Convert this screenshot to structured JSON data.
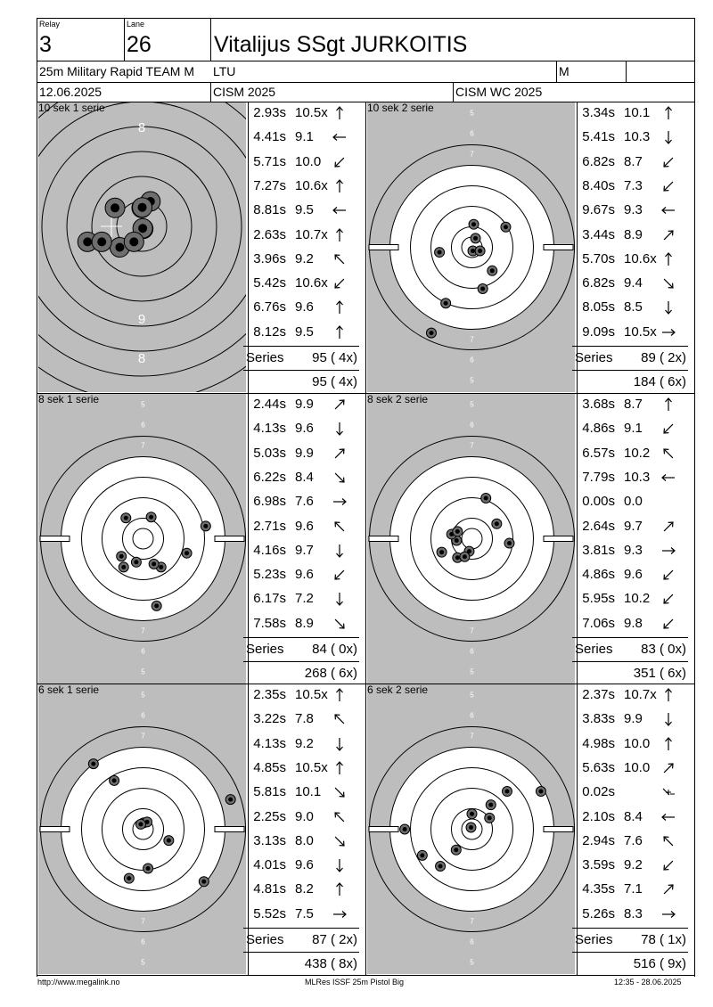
{
  "header": {
    "relay_label": "Relay",
    "relay": "3",
    "lane_label": "Lane",
    "lane": "26",
    "shooter": "Vitalijus SSgt JURKOITIS",
    "event": "25m Military Rapid TEAM M",
    "nation": "LTU",
    "gender": "M",
    "date": "12.06.2025",
    "competition": "CISM 2025",
    "championship": "CISM WC 2025"
  },
  "series_label": "Series",
  "panels": [
    {
      "title": "10 sek 1 serie",
      "zoom": true,
      "shots": [
        {
          "time": "2.93s",
          "score": "10.5x",
          "dir": "n"
        },
        {
          "time": "4.41s",
          "score": "9.1",
          "dir": "w"
        },
        {
          "time": "5.71s",
          "score": "10.0",
          "dir": "sw"
        },
        {
          "time": "7.27s",
          "score": "10.6x",
          "dir": "n"
        },
        {
          "time": "8.81s",
          "score": "9.5",
          "dir": "w"
        },
        {
          "time": "2.63s",
          "score": "10.7x",
          "dir": "n"
        },
        {
          "time": "3.96s",
          "score": "9.2",
          "dir": "nw"
        },
        {
          "time": "5.42s",
          "score": "10.6x",
          "dir": "sw"
        },
        {
          "time": "6.76s",
          "score": "9.6",
          "dir": "n"
        },
        {
          "time": "8.12s",
          "score": "9.5",
          "dir": "n"
        }
      ],
      "series_score": "95 ( 4x)",
      "running_total": "95 ( 4x)",
      "hits": [
        [
          0.35,
          -1.0
        ],
        [
          -1.07,
          -0.74
        ],
        [
          -0.0,
          -0.74
        ],
        [
          0.02,
          -0.76
        ],
        [
          -2.17,
          0.62
        ],
        [
          0.06,
          0.1
        ],
        [
          -0.88,
          0.84
        ],
        [
          0.04,
          0.08
        ],
        [
          -0.31,
          0.62
        ],
        [
          -1.6,
          0.62
        ]
      ]
    },
    {
      "title": "10 sek 2 serie",
      "zoom": false,
      "shots": [
        {
          "time": "3.34s",
          "score": "10.1",
          "dir": "n"
        },
        {
          "time": "5.41s",
          "score": "10.3",
          "dir": "s"
        },
        {
          "time": "6.82s",
          "score": "8.7",
          "dir": "sw"
        },
        {
          "time": "8.40s",
          "score": "7.3",
          "dir": "sw"
        },
        {
          "time": "9.67s",
          "score": "9.3",
          "dir": "w"
        },
        {
          "time": "3.44s",
          "score": "8.9",
          "dir": "ne"
        },
        {
          "time": "5.70s",
          "score": "10.6x",
          "dir": "n"
        },
        {
          "time": "6.82s",
          "score": "9.4",
          "dir": "se"
        },
        {
          "time": "8.05s",
          "score": "8.5",
          "dir": "s"
        },
        {
          "time": "9.09s",
          "score": "10.5x",
          "dir": "e"
        }
      ],
      "series_score": "89 ( 2x)",
      "running_total": "184 ( 6x)",
      "hits": [
        [
          0.04,
          -0.51
        ],
        [
          0.08,
          -0.2
        ],
        [
          -0.58,
          1.24
        ],
        [
          -0.9,
          1.9
        ],
        [
          -0.72,
          0.11
        ],
        [
          0.75,
          -0.45
        ],
        [
          0.02,
          0.08
        ],
        [
          0.45,
          0.52
        ],
        [
          0.24,
          0.92
        ],
        [
          0.18,
          0.08
        ]
      ]
    },
    {
      "title": "8 sek 1 serie",
      "zoom": false,
      "shots": [
        {
          "time": "2.44s",
          "score": "9.9",
          "dir": "ne"
        },
        {
          "time": "4.13s",
          "score": "9.6",
          "dir": "s"
        },
        {
          "time": "5.03s",
          "score": "9.9",
          "dir": "ne"
        },
        {
          "time": "6.22s",
          "score": "8.4",
          "dir": "se"
        },
        {
          "time": "6.98s",
          "score": "7.6",
          "dir": "e"
        },
        {
          "time": "2.71s",
          "score": "9.6",
          "dir": "nw"
        },
        {
          "time": "4.16s",
          "score": "9.7",
          "dir": "s"
        },
        {
          "time": "5.23s",
          "score": "9.6",
          "dir": "sw"
        },
        {
          "time": "6.17s",
          "score": "7.2",
          "dir": "s"
        },
        {
          "time": "7.58s",
          "score": "8.9",
          "dir": "se"
        }
      ],
      "series_score": "84 ( 0x)",
      "running_total": "268 ( 6x)",
      "hits": [
        [
          -0.43,
          0.63
        ],
        [
          0.18,
          -0.48
        ],
        [
          0.4,
          0.63
        ],
        [
          1.39,
          -0.28
        ],
        [
          0.3,
          1.49
        ],
        [
          -0.38,
          -0.46
        ],
        [
          0.24,
          0.56
        ],
        [
          -0.15,
          0.52
        ],
        [
          0.97,
          0.32
        ],
        [
          -0.48,
          0.39
        ]
      ]
    },
    {
      "title": "8 sek 2 serie",
      "zoom": false,
      "shots": [
        {
          "time": "3.68s",
          "score": "8.7",
          "dir": "n"
        },
        {
          "time": "4.86s",
          "score": "9.1",
          "dir": "sw"
        },
        {
          "time": "6.57s",
          "score": "10.2",
          "dir": "nw"
        },
        {
          "time": "7.79s",
          "score": "10.3",
          "dir": "w"
        },
        {
          "time": "0.00s",
          "score": "0.0",
          "dir": ""
        },
        {
          "time": "2.64s",
          "score": "9.7",
          "dir": "ne"
        },
        {
          "time": "3.81s",
          "score": "9.3",
          "dir": "e"
        },
        {
          "time": "4.86s",
          "score": "9.6",
          "dir": "sw"
        },
        {
          "time": "5.95s",
          "score": "10.2",
          "dir": "sw"
        },
        {
          "time": "7.06s",
          "score": "9.8",
          "dir": "sw"
        }
      ],
      "series_score": "83 ( 0x)",
      "running_total": "351 ( 6x)",
      "hits": [
        [
          0.31,
          -0.9
        ],
        [
          -0.67,
          0.3
        ],
        [
          0.55,
          -0.33
        ],
        [
          -0.34,
          0.04
        ],
        [
          -0.32,
          0.42
        ],
        [
          0.83,
          0.1
        ],
        [
          -0.45,
          -0.1
        ],
        [
          -0.06,
          0.28
        ],
        [
          -0.16,
          0.4
        ],
        [
          -0.32,
          -0.16
        ]
      ]
    },
    {
      "title": "6 sek 1 serie",
      "zoom": false,
      "shots": [
        {
          "time": "2.35s",
          "score": "10.5x",
          "dir": "n"
        },
        {
          "time": "3.22s",
          "score": "7.8",
          "dir": "nw"
        },
        {
          "time": "4.13s",
          "score": "9.2",
          "dir": "s"
        },
        {
          "time": "4.85s",
          "score": "10.5x",
          "dir": "n"
        },
        {
          "time": "5.81s",
          "score": "10.1",
          "dir": "se"
        },
        {
          "time": "2.25s",
          "score": "9.0",
          "dir": "nw"
        },
        {
          "time": "3.13s",
          "score": "8.0",
          "dir": "se"
        },
        {
          "time": "4.01s",
          "score": "9.6",
          "dir": "s"
        },
        {
          "time": "4.81s",
          "score": "8.2",
          "dir": "n"
        },
        {
          "time": "5.52s",
          "score": "7.5",
          "dir": "e"
        }
      ],
      "series_score": "87 ( 2x)",
      "running_total": "438 ( 8x)",
      "hits": [
        [
          0.01,
          -0.14
        ],
        [
          -1.1,
          -1.45
        ],
        [
          0.09,
          -0.16
        ],
        [
          -0.05,
          -0.11
        ],
        [
          1.94,
          -0.66
        ],
        [
          -0.64,
          -1.08
        ],
        [
          0.57,
          0.25
        ],
        [
          0.11,
          0.87
        ],
        [
          -0.31,
          1.09
        ],
        [
          1.35,
          1.16
        ]
      ]
    },
    {
      "title": "6 sek 2 serie",
      "zoom": false,
      "shots": [
        {
          "time": "2.37s",
          "score": "10.7x",
          "dir": "n"
        },
        {
          "time": "3.83s",
          "score": "9.9",
          "dir": "s"
        },
        {
          "time": "4.98s",
          "score": "10.0",
          "dir": "n"
        },
        {
          "time": "5.63s",
          "score": "10.0",
          "dir": "ne"
        },
        {
          "time": "0.02s",
          "score": "",
          "dir": "target"
        },
        {
          "time": "2.10s",
          "score": "8.4",
          "dir": "w"
        },
        {
          "time": "2.94s",
          "score": "7.6",
          "dir": "nw"
        },
        {
          "time": "3.59s",
          "score": "9.2",
          "dir": "sw"
        },
        {
          "time": "4.35s",
          "score": "7.1",
          "dir": "ne"
        },
        {
          "time": "5.26s",
          "score": "8.3",
          "dir": "e"
        }
      ],
      "series_score": "78 ( 1x)",
      "running_total": "516 ( 9x)",
      "hits": [
        [
          -0.02,
          -0.04
        ],
        [
          0.78,
          -0.84
        ],
        [
          0.39,
          -0.25
        ],
        [
          0.0,
          -0.34
        ],
        [
          0.42,
          -0.54
        ],
        [
          -1.49,
          0.0
        ],
        [
          -1.1,
          0.58
        ],
        [
          1.53,
          -0.84
        ],
        [
          -0.7,
          0.82
        ],
        [
          -0.35,
          0.46
        ]
      ]
    }
  ],
  "footer": {
    "url": "http://www.megalink.no",
    "program": "MLRes ISSF 25m Pistol Big",
    "printed": "12:35 - 28.06.2025"
  }
}
